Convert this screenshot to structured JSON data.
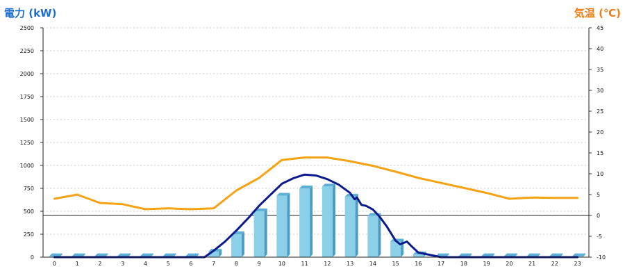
{
  "chart_data": {
    "type": "bar",
    "title_left": "電力 (kW)",
    "title_right": "気温 (℃)",
    "categories": [
      "0",
      "1",
      "2",
      "3",
      "4",
      "5",
      "6",
      "7",
      "8",
      "9",
      "10",
      "11",
      "12",
      "13",
      "14",
      "15",
      "16",
      "17",
      "18",
      "19",
      "20",
      "21",
      "22",
      "23"
    ],
    "y_left": {
      "min": 0,
      "max": 2500,
      "step": 250
    },
    "y_right": {
      "min": -10,
      "max": 45,
      "step": 5
    },
    "grid": true,
    "colors": {
      "bar": "#8ccfe8",
      "bar_side": "#4a9cc2",
      "bar_top": "#5fb0d8",
      "power_line": "#0b1a8c",
      "temp_line": "#f5a214",
      "left_title": "#1a6fd0",
      "right_title": "#f07d12"
    },
    "series": [
      {
        "kind": "bar",
        "axis": "left",
        "values": [
          10,
          10,
          10,
          10,
          10,
          10,
          10,
          60,
          250,
          500,
          670,
          750,
          770,
          660,
          450,
          170,
          30,
          10,
          10,
          10,
          10,
          10,
          10,
          10
        ]
      },
      {
        "kind": "line",
        "axis": "left",
        "x": [
          0,
          1,
          2,
          3,
          4,
          5,
          6,
          6.6,
          7,
          7.5,
          8,
          8.5,
          9,
          9.5,
          10,
          10.5,
          11,
          11.5,
          12,
          12.5,
          13,
          13.2,
          13.3,
          13.5,
          13.7,
          14,
          14.3,
          14.6,
          14.8,
          15,
          15.2,
          15.5,
          15.7,
          16,
          17,
          18,
          19,
          20,
          21,
          22,
          23
        ],
        "values": [
          0,
          0,
          0,
          0,
          0,
          0,
          0,
          0,
          70,
          170,
          290,
          420,
          560,
          680,
          800,
          860,
          900,
          890,
          850,
          790,
          700,
          630,
          650,
          570,
          560,
          520,
          440,
          340,
          260,
          180,
          140,
          170,
          120,
          50,
          0,
          0,
          0,
          0,
          0,
          0,
          0
        ]
      },
      {
        "kind": "line",
        "axis": "right",
        "x": [
          0,
          1,
          2,
          3,
          4,
          5,
          6,
          7,
          8,
          9,
          10,
          10.5,
          11,
          12,
          13,
          14,
          15,
          16,
          17,
          18,
          19,
          20,
          21,
          22,
          23
        ],
        "values": [
          4,
          5,
          3,
          2.7,
          1.5,
          1.7,
          1.5,
          1.7,
          6,
          9,
          13.3,
          13.6,
          13.9,
          13.9,
          13,
          11.9,
          10.5,
          9,
          7.8,
          6.6,
          5.4,
          4,
          4.3,
          4.2,
          4.2
        ]
      }
    ]
  }
}
